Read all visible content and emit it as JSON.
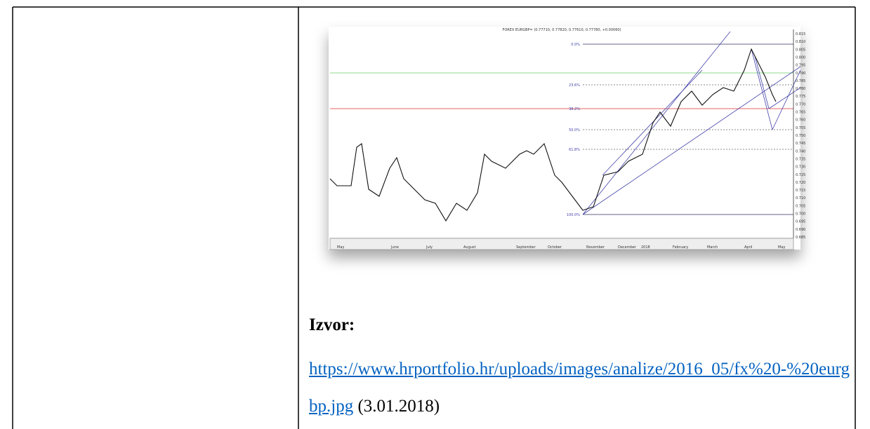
{
  "image": {
    "title": "FOREX EURGBP= (0.77710, 0.77820, 0.77610, 0.77780, +0.00060)",
    "fib_levels": [
      "0.0%",
      "23.6%",
      "38.2%",
      "50.0%",
      "61.8%",
      "100.0%"
    ],
    "y_labels": [
      "0.815",
      "0.810",
      "0.805",
      "0.800",
      "0.795",
      "0.790",
      "0.785",
      "0.780",
      "0.775",
      "0.770",
      "0.765",
      "0.760",
      "0.755",
      "0.750",
      "0.745",
      "0.740",
      "0.735",
      "0.730",
      "0.725",
      "0.720",
      "0.715",
      "0.710",
      "0.705",
      "0.700",
      "0.695",
      "0.690",
      "0.685"
    ],
    "months": [
      "May",
      "June",
      "July",
      "August",
      "September",
      "October",
      "November",
      "December",
      "2018",
      "February",
      "March",
      "April",
      "May"
    ]
  },
  "source_label": "Izvor:",
  "source_url": "https://www.hrportfolio.hr/uploads/images/analize/2016_05/fx%20-%20eurgbp.jpg",
  "source_date": "(3.01.2018)"
}
